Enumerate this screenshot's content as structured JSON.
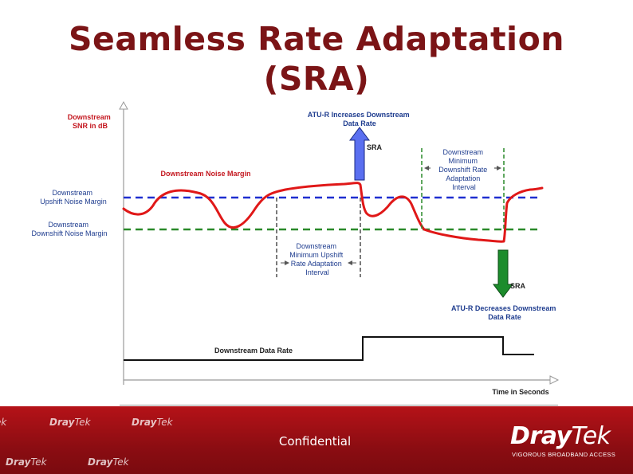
{
  "title": {
    "line1": "Seamless Rate Adaptation",
    "line2": "(SRA)"
  },
  "labels": {
    "y_axis": [
      "Downstream",
      "SNR in dB"
    ],
    "x_axis": "Time in Seconds",
    "noise_margin": "Downstream Noise Margin",
    "upshift_margin": [
      "Downstream",
      "Upshift Noise Margin"
    ],
    "downshift_margin": [
      "Downstream",
      "Downshift Noise Margin"
    ],
    "increase_header": [
      "ATU-R Increases Downstream",
      "Data Rate"
    ],
    "decrease_footer": [
      "ATU-R Decreases Downstream",
      "Data Rate"
    ],
    "sra_up": "SRA",
    "sra_down": "SRA",
    "upshift_interval": [
      "Downstream",
      "Minimum Upshift",
      "Rate Adaptation",
      "Interval"
    ],
    "downshift_interval": [
      "Downstream",
      "Minimum",
      "Downshift Rate",
      "Adaptation",
      "Interval"
    ],
    "data_rate": "Downstream Data Rate"
  },
  "colors": {
    "title": "#7b1416",
    "snr_curve": "#e01818",
    "upshift_line": "#1f2fd0",
    "downshift_line": "#2a8a2a",
    "sra_up_arrow": "#5a6ff0",
    "sra_down_arrow": "#1c8c2c",
    "footer": "#a10f15"
  },
  "footer": {
    "confidential": "Confidential",
    "logo_dray": "Dray",
    "logo_tek": "Tek",
    "tagline": "VIGOROUS BROADBAND ACCESS",
    "watermarks": [
      {
        "dray": "Dray",
        "tek": "Tek"
      },
      {
        "dray": "Dray",
        "tek": "Tek"
      },
      {
        "dray": "Dray",
        "tek": "Tek"
      },
      {
        "dray": "Dray",
        "tek": "Tek"
      },
      {
        "dray": "",
        "tek": "ek"
      }
    ]
  }
}
